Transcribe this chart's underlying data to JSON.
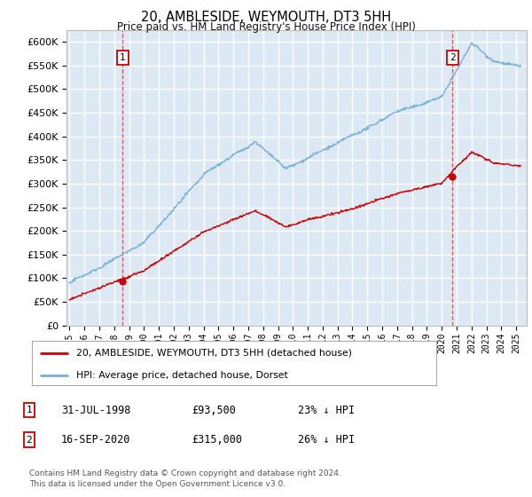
{
  "title": "20, AMBLESIDE, WEYMOUTH, DT3 5HH",
  "subtitle": "Price paid vs. HM Land Registry's House Price Index (HPI)",
  "ytick_values": [
    0,
    50000,
    100000,
    150000,
    200000,
    250000,
    300000,
    350000,
    400000,
    450000,
    500000,
    550000,
    600000
  ],
  "ylim": [
    0,
    625000
  ],
  "xlim_start": 1994.8,
  "xlim_end": 2025.7,
  "background_color": "#dce9f5",
  "grid_color": "#ffffff",
  "sale1_date": 1998.58,
  "sale1_price": 93500,
  "sale2_date": 2020.71,
  "sale2_price": 315000,
  "legend_line1": "20, AMBLESIDE, WEYMOUTH, DT3 5HH (detached house)",
  "legend_line2": "HPI: Average price, detached house, Dorset",
  "annotation1_date": "31-JUL-1998",
  "annotation1_price": "£93,500",
  "annotation1_hpi": "23% ↓ HPI",
  "annotation2_date": "16-SEP-2020",
  "annotation2_price": "£315,000",
  "annotation2_hpi": "26% ↓ HPI",
  "footer": "Contains HM Land Registry data © Crown copyright and database right 2024.\nThis data is licensed under the Open Government Licence v3.0.",
  "line_color_red": "#cc0000",
  "line_color_blue": "#7ab0d4"
}
